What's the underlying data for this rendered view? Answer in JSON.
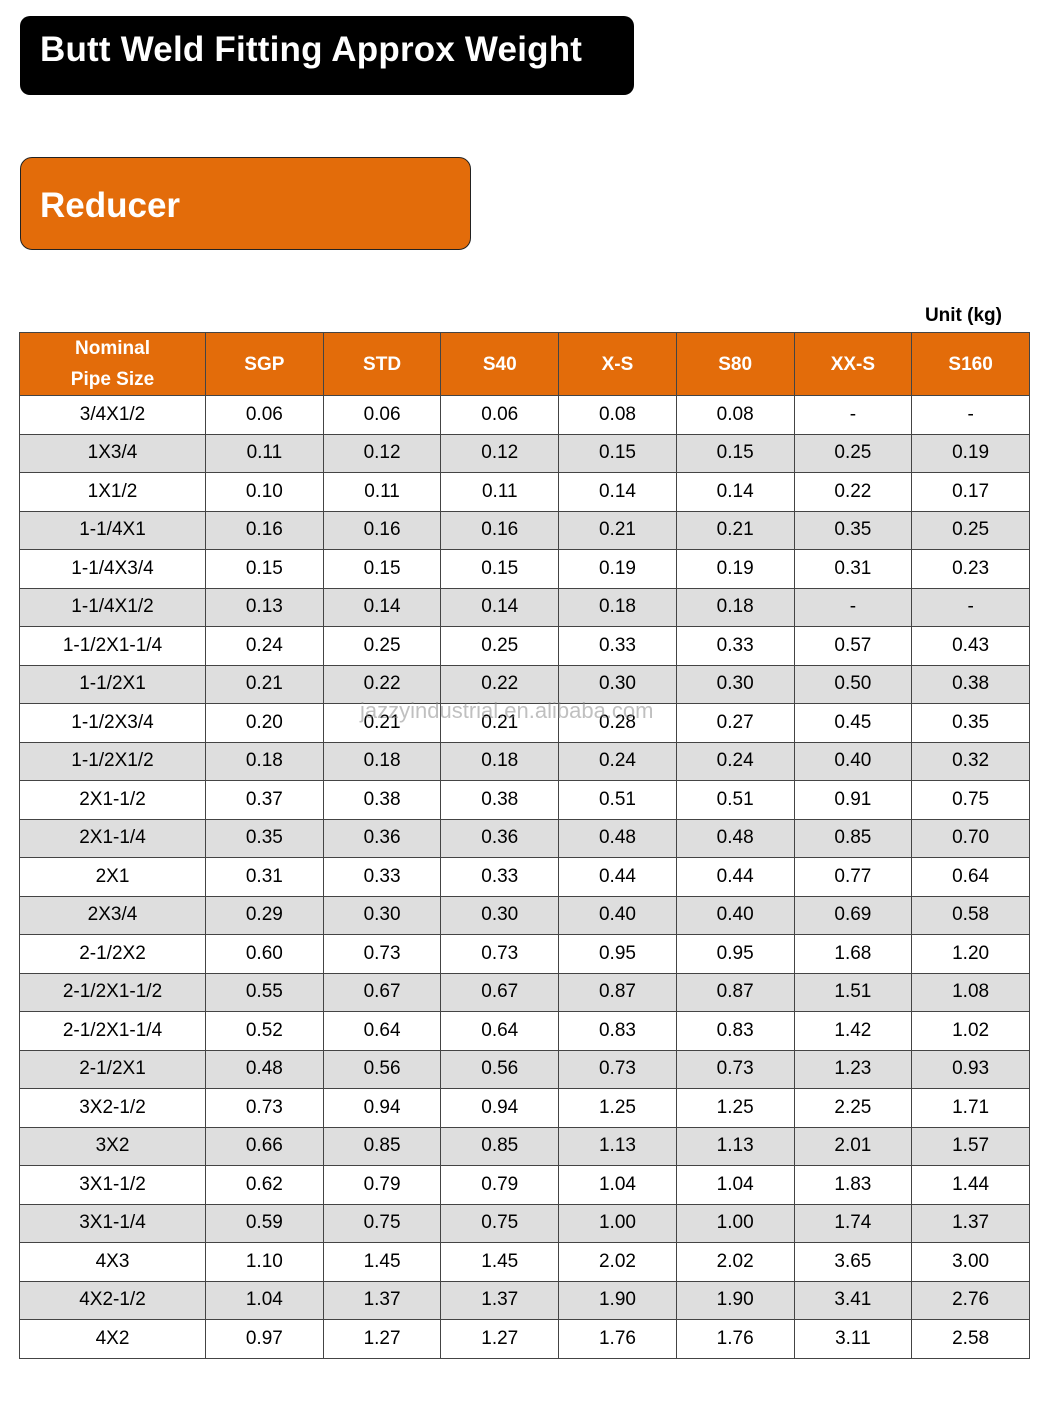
{
  "title": "Butt Weld Fitting Approx Weight",
  "section": "Reducer",
  "unit": "Unit (kg)",
  "watermark": "jazzyindustrial.en.alibaba.com",
  "colors": {
    "header_bg": "#e36c0a",
    "title_bg": "#000000",
    "stripe": "#dedede"
  },
  "table": {
    "headers": [
      "Nominal\nPipe Size",
      "SGP",
      "STD",
      "S40",
      "X-S",
      "S80",
      "XX-S",
      "S160"
    ],
    "rows": [
      [
        "3/4X1/2",
        "0.06",
        "0.06",
        "0.06",
        "0.08",
        "0.08",
        "-",
        "-"
      ],
      [
        "1X3/4",
        "0.11",
        "0.12",
        "0.12",
        "0.15",
        "0.15",
        "0.25",
        "0.19"
      ],
      [
        "1X1/2",
        "0.10",
        "0.11",
        "0.11",
        "0.14",
        "0.14",
        "0.22",
        "0.17"
      ],
      [
        "1-1/4X1",
        "0.16",
        "0.16",
        "0.16",
        "0.21",
        "0.21",
        "0.35",
        "0.25"
      ],
      [
        "1-1/4X3/4",
        "0.15",
        "0.15",
        "0.15",
        "0.19",
        "0.19",
        "0.31",
        "0.23"
      ],
      [
        "1-1/4X1/2",
        "0.13",
        "0.14",
        "0.14",
        "0.18",
        "0.18",
        "-",
        "-"
      ],
      [
        "1-1/2X1-1/4",
        "0.24",
        "0.25",
        "0.25",
        "0.33",
        "0.33",
        "0.57",
        "0.43"
      ],
      [
        "1-1/2X1",
        "0.21",
        "0.22",
        "0.22",
        "0.30",
        "0.30",
        "0.50",
        "0.38"
      ],
      [
        "1-1/2X3/4",
        "0.20",
        "0.21",
        "0.21",
        "0.28",
        "0.27",
        "0.45",
        "0.35"
      ],
      [
        "1-1/2X1/2",
        "0.18",
        "0.18",
        "0.18",
        "0.24",
        "0.24",
        "0.40",
        "0.32"
      ],
      [
        "2X1-1/2",
        "0.37",
        "0.38",
        "0.38",
        "0.51",
        "0.51",
        "0.91",
        "0.75"
      ],
      [
        "2X1-1/4",
        "0.35",
        "0.36",
        "0.36",
        "0.48",
        "0.48",
        "0.85",
        "0.70"
      ],
      [
        "2X1",
        "0.31",
        "0.33",
        "0.33",
        "0.44",
        "0.44",
        "0.77",
        "0.64"
      ],
      [
        "2X3/4",
        "0.29",
        "0.30",
        "0.30",
        "0.40",
        "0.40",
        "0.69",
        "0.58"
      ],
      [
        "2-1/2X2",
        "0.60",
        "0.73",
        "0.73",
        "0.95",
        "0.95",
        "1.68",
        "1.20"
      ],
      [
        "2-1/2X1-1/2",
        "0.55",
        "0.67",
        "0.67",
        "0.87",
        "0.87",
        "1.51",
        "1.08"
      ],
      [
        "2-1/2X1-1/4",
        "0.52",
        "0.64",
        "0.64",
        "0.83",
        "0.83",
        "1.42",
        "1.02"
      ],
      [
        "2-1/2X1",
        "0.48",
        "0.56",
        "0.56",
        "0.73",
        "0.73",
        "1.23",
        "0.93"
      ],
      [
        "3X2-1/2",
        "0.73",
        "0.94",
        "0.94",
        "1.25",
        "1.25",
        "2.25",
        "1.71"
      ],
      [
        "3X2",
        "0.66",
        "0.85",
        "0.85",
        "1.13",
        "1.13",
        "2.01",
        "1.57"
      ],
      [
        "3X1-1/2",
        "0.62",
        "0.79",
        "0.79",
        "1.04",
        "1.04",
        "1.83",
        "1.44"
      ],
      [
        "3X1-1/4",
        "0.59",
        "0.75",
        "0.75",
        "1.00",
        "1.00",
        "1.74",
        "1.37"
      ],
      [
        "4X3",
        "1.10",
        "1.45",
        "1.45",
        "2.02",
        "2.02",
        "3.65",
        "3.00"
      ],
      [
        "4X2-1/2",
        "1.04",
        "1.37",
        "1.37",
        "1.90",
        "1.90",
        "3.41",
        "2.76"
      ],
      [
        "4X2",
        "0.97",
        "1.27",
        "1.27",
        "1.76",
        "1.76",
        "3.11",
        "2.58"
      ]
    ]
  }
}
